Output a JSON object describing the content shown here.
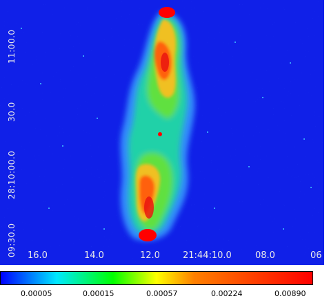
{
  "image": {
    "description_icon": "radio-continuum-map",
    "background_color": "#1020e8"
  },
  "dec_axis": {
    "labels": [
      "11:00.0",
      "30.0",
      "28:10:00.0",
      "09:30.0"
    ]
  },
  "ra_axis": {
    "labels": [
      "16.0",
      "14.0",
      "12.0",
      "21:44:10.0",
      "08.0",
      "06"
    ]
  },
  "colorbar": {
    "labels": [
      "0.00005",
      "0.00015",
      "0.00057",
      "0.00224",
      "0.00890"
    ],
    "colors": [
      "#0000ff",
      "#00e8ff",
      "#00ff00",
      "#ffff00",
      "#ff8000",
      "#ff0000"
    ]
  }
}
